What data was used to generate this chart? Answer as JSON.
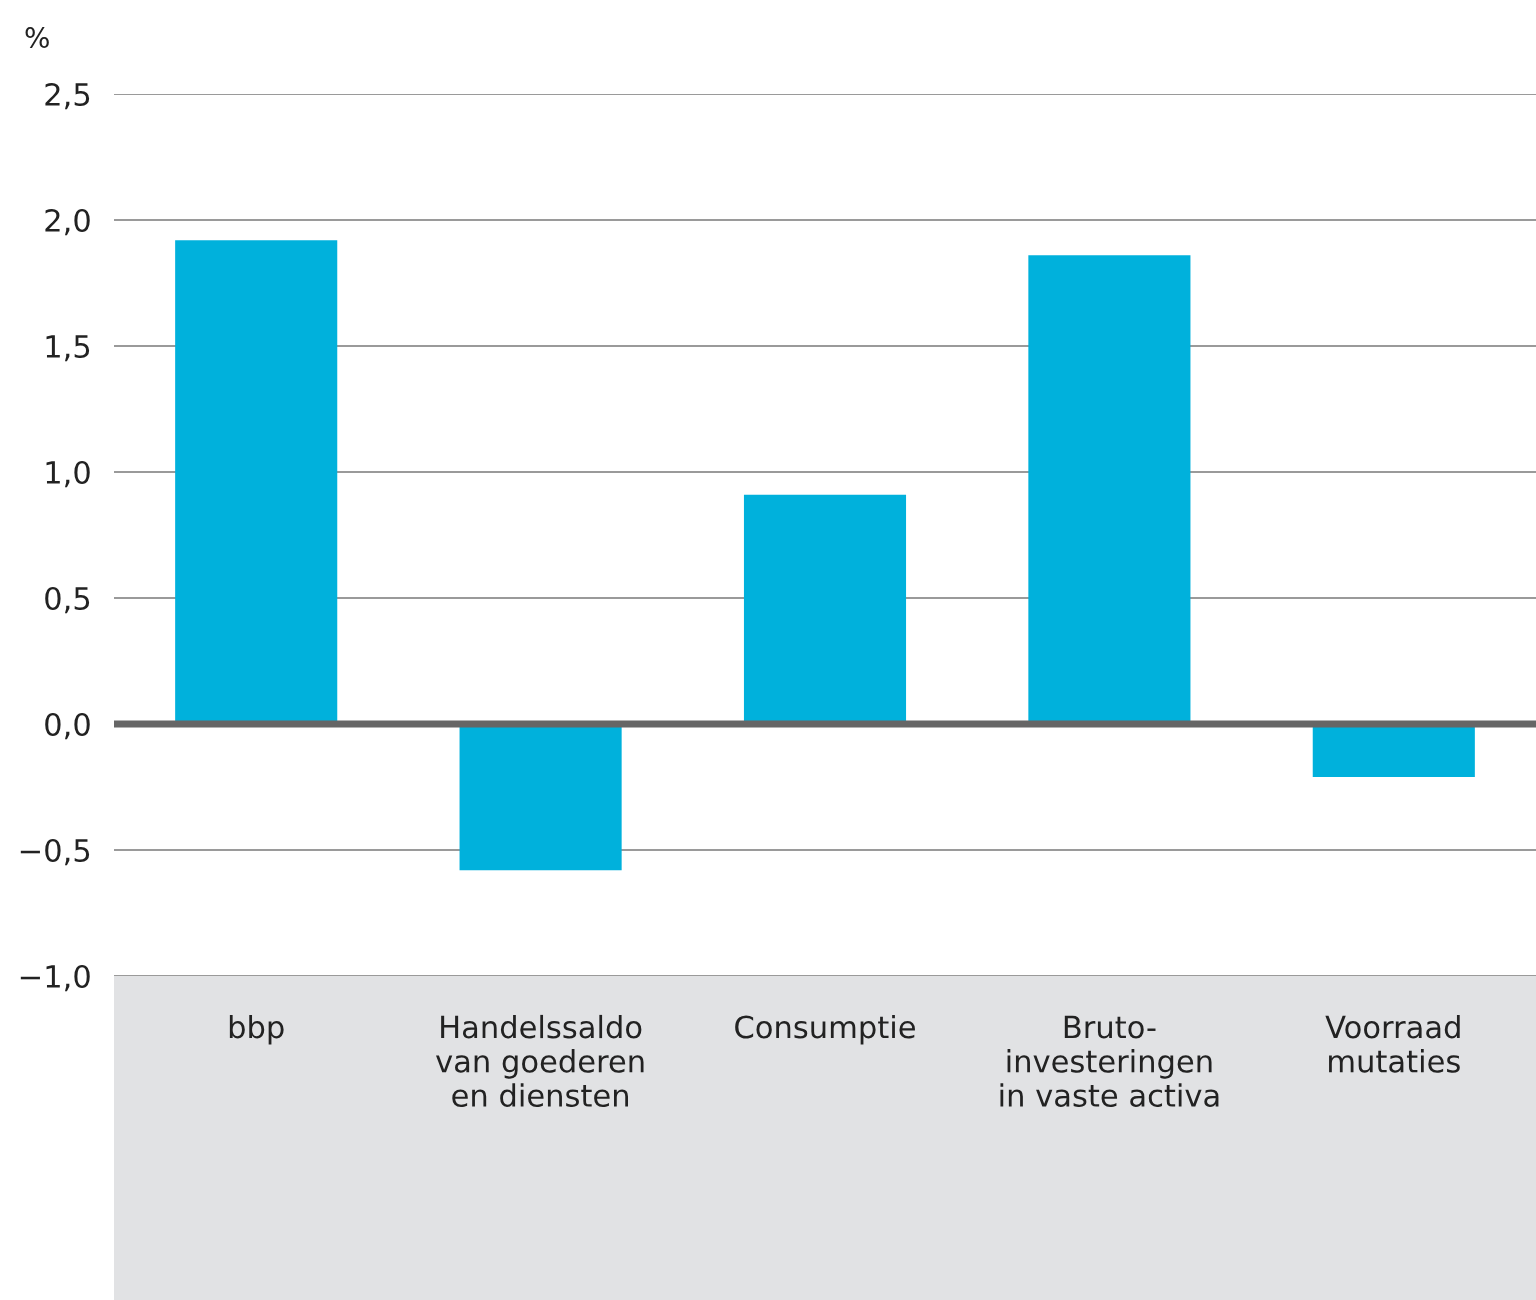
{
  "chart_data": {
    "type": "bar",
    "ylabel": "%",
    "categories": [
      "bbp",
      "Handelssaldo\nvan goederen\nen diensten",
      "Consumptie",
      "Bruto-\ninvesteringen\nin vaste activa",
      "Voorraad\nmutaties"
    ],
    "values": [
      1.92,
      -0.58,
      0.91,
      1.86,
      -0.21
    ],
    "color": "#00b1dc",
    "ylim": [
      -1.0,
      2.5
    ],
    "yticks": [
      {
        "value": -1.0,
        "label": "−1,0"
      },
      {
        "value": -0.5,
        "label": "−0,5"
      },
      {
        "value": 0.0,
        "label": "0,0"
      },
      {
        "value": 0.5,
        "label": "0,5"
      },
      {
        "value": 1.0,
        "label": "1,0"
      },
      {
        "value": 1.5,
        "label": "1,5"
      },
      {
        "value": 2.0,
        "label": "2,0"
      },
      {
        "value": 2.5,
        "label": "2,5"
      }
    ],
    "grid": "y"
  }
}
